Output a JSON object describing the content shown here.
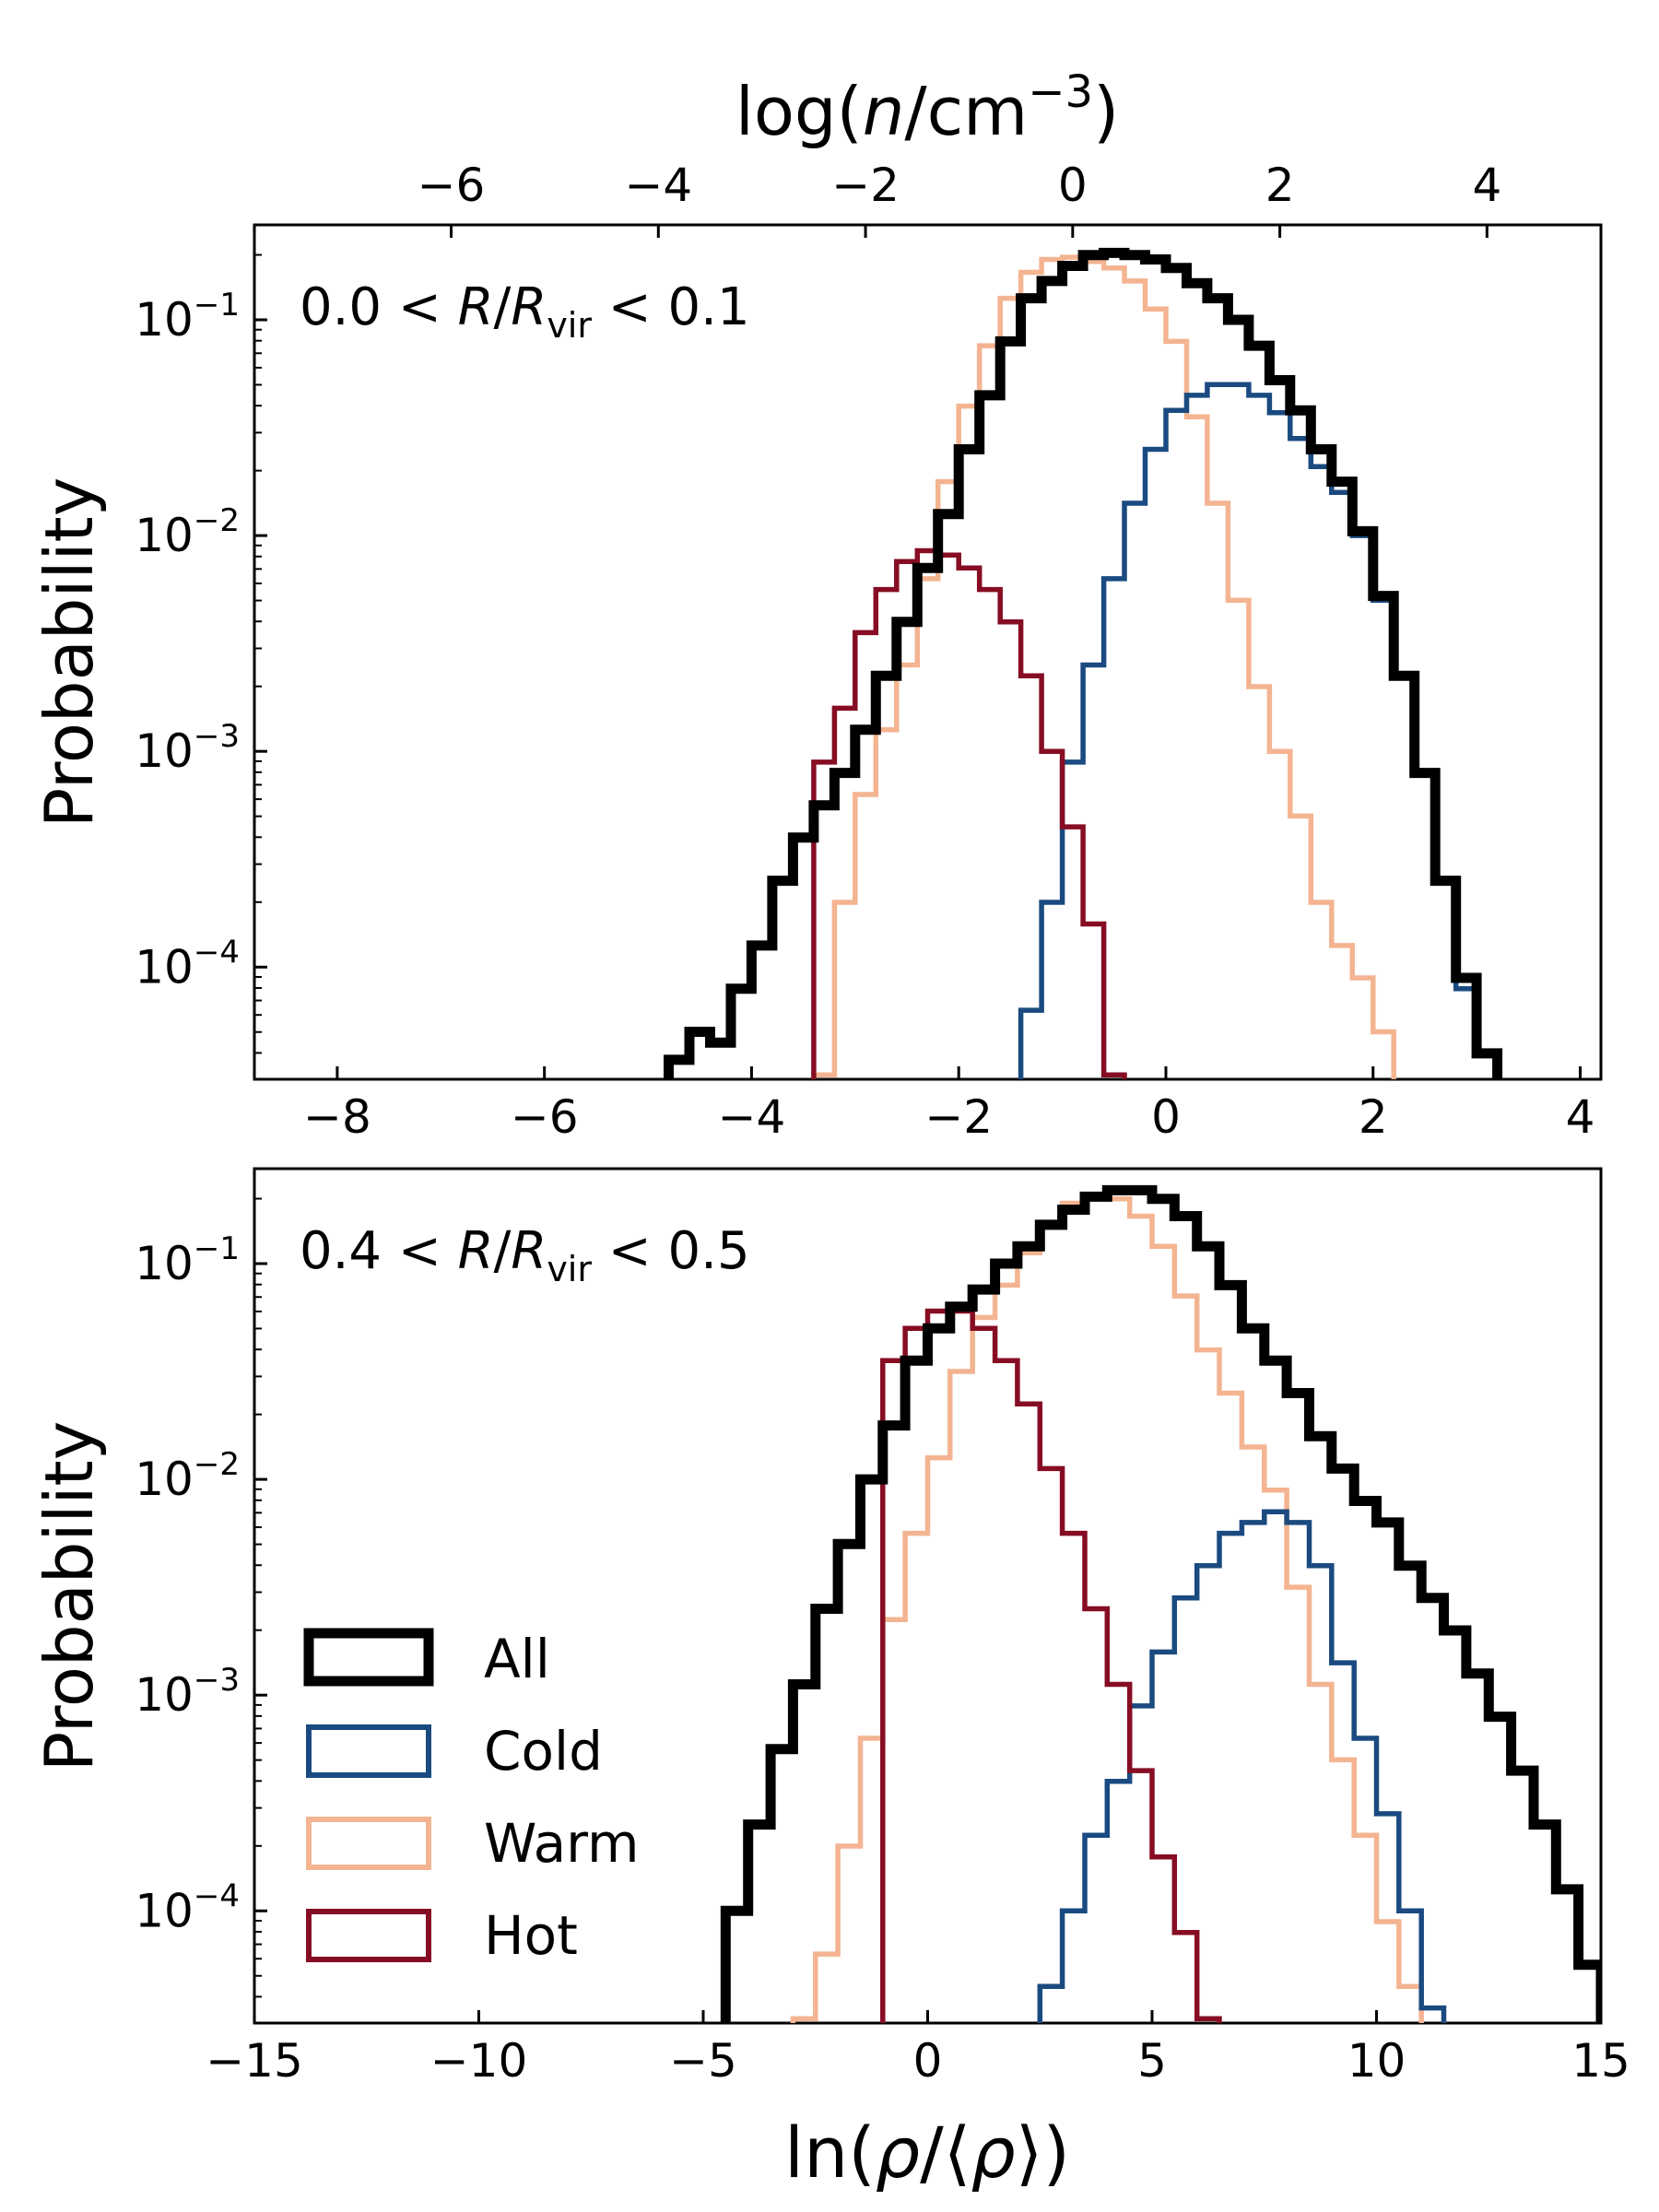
{
  "colors": {
    "all": "#000000",
    "cold": "#1a4a80",
    "warm": "#f4b491",
    "hot": "#860d24"
  },
  "legend": {
    "items": [
      {
        "key": "all",
        "label": "All"
      },
      {
        "key": "cold",
        "label": "Cold"
      },
      {
        "key": "warm",
        "label": "Warm"
      },
      {
        "key": "hot",
        "label": "Hot"
      }
    ]
  },
  "chart_data": [
    {
      "type": "histogram-step",
      "panel_label": {
        "left": "0.0 < ",
        "R": "R",
        "slash": "/",
        "R2": "R",
        "sub": "vir",
        "right": " < 0.1"
      },
      "ylabel": "Probability",
      "yscale": "log",
      "ylim_log10": [
        -4.52,
        -0.56
      ],
      "yticks": [
        {
          "exp": -1,
          "base": "10",
          "sup": "−1"
        },
        {
          "exp": -2,
          "base": "10",
          "sup": "−2"
        },
        {
          "exp": -3,
          "base": "10",
          "sup": "−3"
        },
        {
          "exp": -4,
          "base": "10",
          "sup": "−4"
        }
      ],
      "xlim": [
        -8.8,
        4.2
      ],
      "xticks": [
        {
          "v": -8,
          "label": "−8"
        },
        {
          "v": -6,
          "label": "−6"
        },
        {
          "v": -4,
          "label": "−4"
        },
        {
          "v": -2,
          "label": "−2"
        },
        {
          "v": 0,
          "label": "0"
        },
        {
          "v": 2,
          "label": "2"
        },
        {
          "v": 4,
          "label": "4"
        }
      ],
      "top_axis": {
        "label": {
          "pre": "log(",
          "n": "n",
          "mid": "/cm",
          "sup": "−3",
          "post": ")"
        },
        "ticks": [
          {
            "v": -6,
            "label": "−6"
          },
          {
            "v": -4,
            "label": "−4"
          },
          {
            "v": -2,
            "label": "−2"
          },
          {
            "v": 0,
            "label": "0"
          },
          {
            "v": 2,
            "label": "2"
          },
          {
            "v": 4,
            "label": "4"
          }
        ],
        "xlim": [
          -7.9,
          5.1
        ]
      },
      "bin_start": -5.0,
      "bin_width": 0.2,
      "series": [
        {
          "name": "All",
          "key": "all",
          "log10": [
            -4.6,
            -4.43,
            -4.3,
            -4.35,
            -4.1,
            -3.9,
            -3.6,
            -3.4,
            -3.25,
            -3.1,
            -2.9,
            -2.65,
            -2.4,
            -2.15,
            -1.9,
            -1.6,
            -1.35,
            -1.1,
            -0.9,
            -0.82,
            -0.75,
            -0.7,
            -0.69,
            -0.7,
            -0.72,
            -0.76,
            -0.83,
            -0.9,
            -1.0,
            -1.12,
            -1.28,
            -1.42,
            -1.6,
            -1.75,
            -1.98,
            -2.28,
            -2.65,
            -3.1,
            -3.6,
            -4.05,
            -4.4,
            -4.7
          ]
        },
        {
          "name": "Cold",
          "key": "cold",
          "log10": [
            -5.0,
            -4.6,
            -4.2,
            -3.7,
            -3.05,
            -2.6,
            -2.2,
            -1.85,
            -1.6,
            -1.42,
            -1.35,
            -1.3,
            -1.3,
            -1.35,
            -1.43,
            -1.55,
            -1.68,
            -1.8,
            -2.0,
            -2.3,
            -2.65,
            -3.1,
            -3.6,
            -4.1,
            -4.4,
            -4.7
          ]
        },
        {
          "name": "Warm",
          "key": "warm",
          "log10": [
            -4.5,
            -3.7,
            -3.2,
            -2.9,
            -2.6,
            -2.2,
            -1.75,
            -1.4,
            -1.12,
            -0.9,
            -0.78,
            -0.72,
            -0.71,
            -0.73,
            -0.76,
            -0.82,
            -0.95,
            -1.1,
            -1.45,
            -1.85,
            -2.3,
            -2.7,
            -3.0,
            -3.3,
            -3.7,
            -3.9,
            -4.05,
            -4.3,
            -4.7
          ]
        },
        {
          "name": "Hot",
          "key": "hot",
          "log10": [
            -3.05,
            -2.8,
            -2.45,
            -2.25,
            -2.12,
            -2.07,
            -2.09,
            -2.15,
            -2.25,
            -2.4,
            -2.65,
            -3.0,
            -3.35,
            -3.8,
            -4.5,
            -4.8
          ]
        }
      ],
      "series_start_bins": {
        "all": 0,
        "cold": 16,
        "warm": 8,
        "hot": 8
      }
    },
    {
      "type": "histogram-step",
      "panel_label": {
        "left": "0.4 < ",
        "R": "R",
        "slash": "/",
        "R2": "R",
        "sub": "vir",
        "right": " < 0.5"
      },
      "ylabel": "Probability",
      "yscale": "log",
      "ylim_log10": [
        -4.52,
        -0.56
      ],
      "yticks": [
        {
          "exp": -1,
          "base": "10",
          "sup": "−1"
        },
        {
          "exp": -2,
          "base": "10",
          "sup": "−2"
        },
        {
          "exp": -3,
          "base": "10",
          "sup": "−3"
        },
        {
          "exp": -4,
          "base": "10",
          "sup": "−4"
        }
      ],
      "xlim": [
        -15,
        15
      ],
      "xticks": [
        {
          "v": -15,
          "label": "−15"
        },
        {
          "v": -10,
          "label": "−10"
        },
        {
          "v": -5,
          "label": "−5"
        },
        {
          "v": 0,
          "label": "0"
        },
        {
          "v": 5,
          "label": "5"
        },
        {
          "v": 10,
          "label": "10"
        },
        {
          "v": 15,
          "label": "15"
        }
      ],
      "xlabel": {
        "pre": "ln(",
        "rho": "ρ",
        "mid": "/⟨",
        "rho2": "ρ",
        "post": "⟩)"
      },
      "bin_start": -4.5,
      "bin_width": 0.5,
      "series": [
        {
          "name": "All",
          "key": "all",
          "log10": [
            -4.0,
            -3.6,
            -3.25,
            -2.95,
            -2.6,
            -2.3,
            -2.0,
            -1.75,
            -1.45,
            -1.3,
            -1.2,
            -1.12,
            -1.0,
            -0.92,
            -0.82,
            -0.75,
            -0.69,
            -0.66,
            -0.66,
            -0.7,
            -0.78,
            -0.92,
            -1.1,
            -1.3,
            -1.45,
            -1.6,
            -1.8,
            -1.95,
            -2.1,
            -2.2,
            -2.4,
            -2.55,
            -2.7,
            -2.9,
            -3.1,
            -3.35,
            -3.6,
            -3.9,
            -4.25,
            -4.6
          ]
        },
        {
          "name": "Cold",
          "key": "cold",
          "log10": [
            -4.7,
            -4.35,
            -4.0,
            -3.65,
            -3.4,
            -3.05,
            -2.8,
            -2.55,
            -2.4,
            -2.25,
            -2.2,
            -2.15,
            -2.2,
            -2.4,
            -2.85,
            -3.2,
            -3.55,
            -4.0,
            -4.45,
            -4.7
          ]
        },
        {
          "name": "Warm",
          "key": "warm",
          "log10": [
            -4.5,
            -4.2,
            -3.7,
            -3.2,
            -2.65,
            -2.25,
            -1.9,
            -1.5,
            -1.25,
            -1.1,
            -0.95,
            -0.82,
            -0.72,
            -0.68,
            -0.7,
            -0.78,
            -0.92,
            -1.15,
            -1.4,
            -1.6,
            -1.85,
            -2.05,
            -2.5,
            -2.95,
            -3.3,
            -3.65,
            -4.05,
            -4.35,
            -4.7
          ]
        },
        {
          "name": "Hot",
          "key": "hot",
          "log10": [
            -1.45,
            -1.3,
            -1.22,
            -1.22,
            -1.3,
            -1.45,
            -1.65,
            -1.95,
            -2.25,
            -2.6,
            -2.95,
            -3.35,
            -3.75,
            -4.1,
            -4.5,
            -4.8
          ]
        }
      ],
      "series_start_bins": {
        "all": 0,
        "cold": 13,
        "warm": 3,
        "hot": 7
      }
    }
  ]
}
